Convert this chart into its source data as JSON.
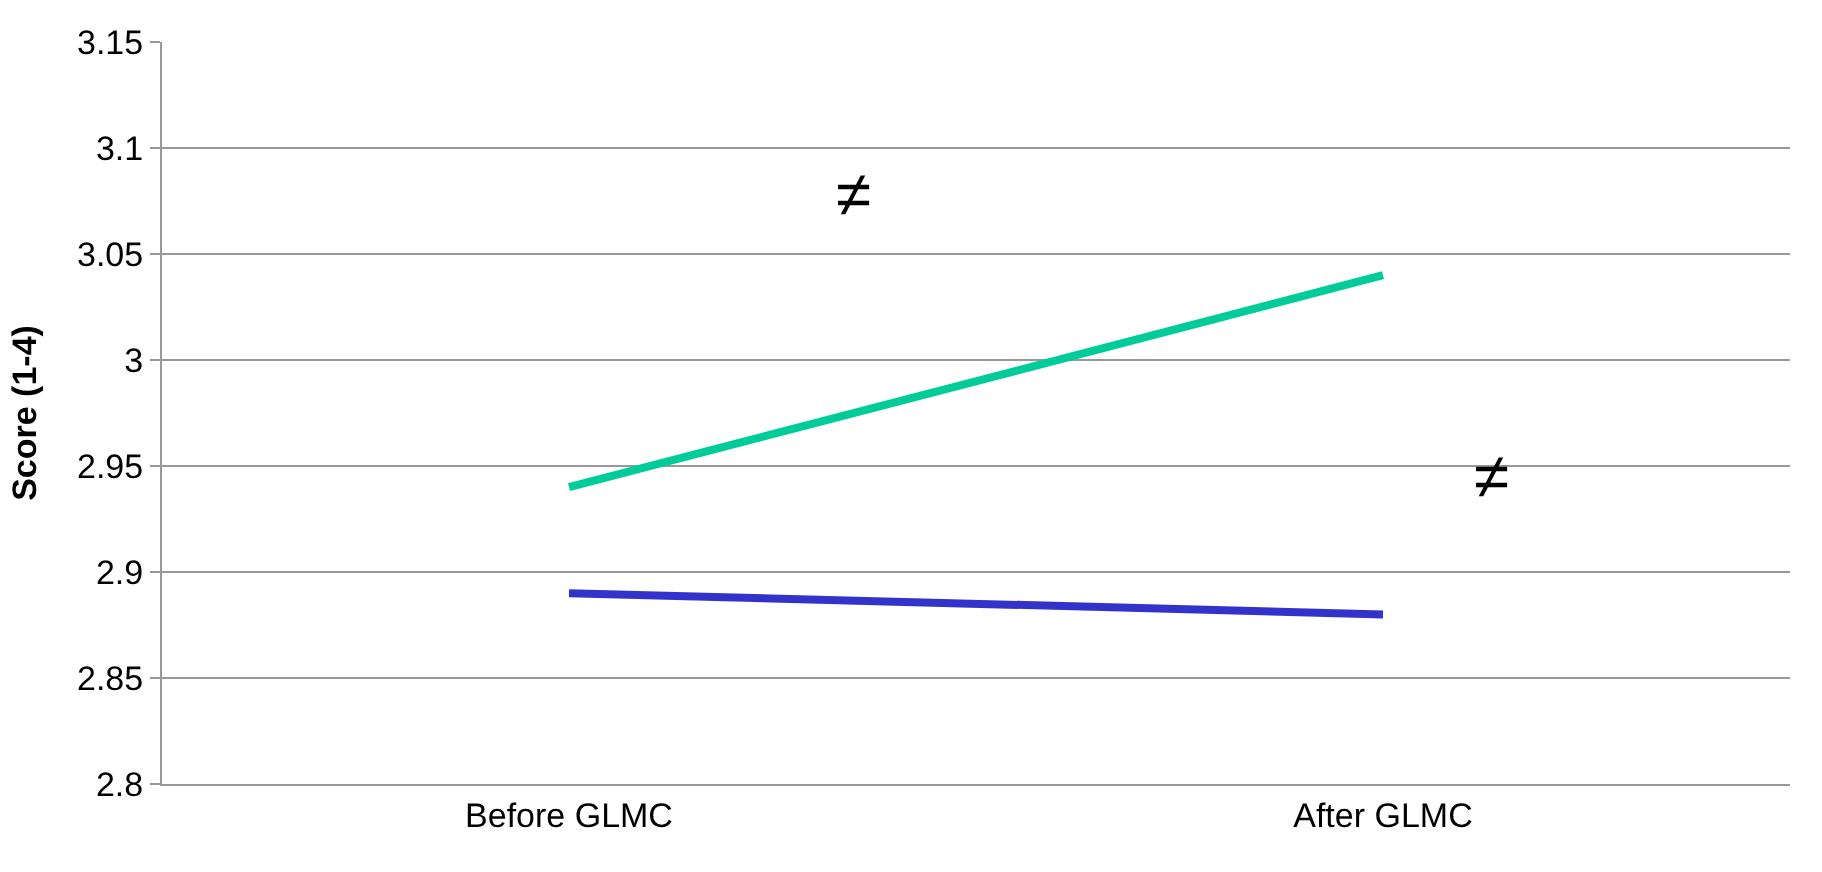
{
  "chart_data": {
    "type": "line",
    "ylabel": "Score (1-4)",
    "categories": [
      "Before GLMC",
      "After GLMC"
    ],
    "series": [
      {
        "color": "#00cc99",
        "values": [
          2.94,
          3.04
        ]
      },
      {
        "color": "#3333cc",
        "values": [
          2.89,
          2.88
        ]
      }
    ],
    "ylim": [
      2.8,
      3.15
    ],
    "yticks": [
      2.8,
      2.85,
      2.9,
      2.95,
      3,
      3.05,
      3.1,
      3.15
    ],
    "grid": "y",
    "marker": "none",
    "line_style": "solid",
    "annotations": [
      "≠",
      "≠"
    ]
  }
}
